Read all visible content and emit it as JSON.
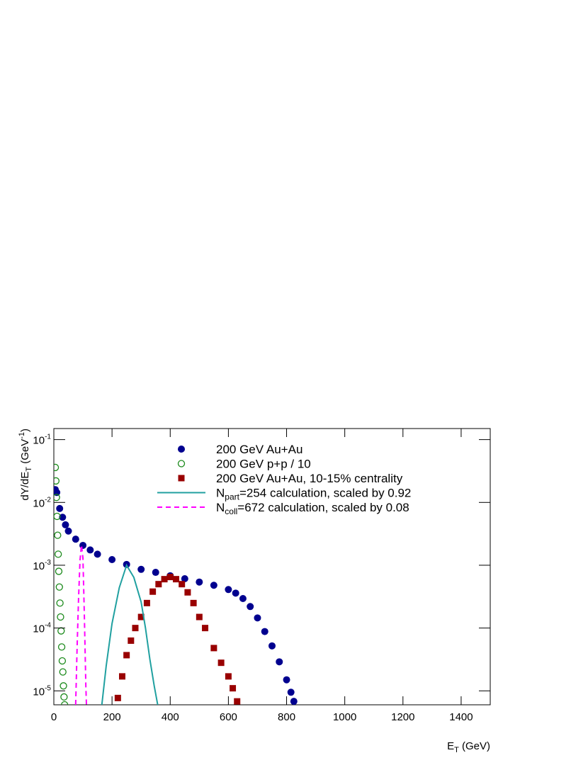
{
  "chart_data": {
    "type": "scatter",
    "xlabel": {
      "text": "E",
      "sub": "T",
      "rest": " (GeV)"
    },
    "ylabel": {
      "text": "dY/dE",
      "sub": "T",
      "mid": " (GeV",
      "sup": "-1",
      "rest": ")"
    },
    "xlim": [
      0,
      1500
    ],
    "ylim": [
      6e-06,
      0.15
    ],
    "log_y": true,
    "xticks": [
      0,
      200,
      400,
      600,
      800,
      1000,
      1200,
      1400
    ],
    "yticks": [
      {
        "value": 1e-05,
        "label": "10",
        "exponent": "-5"
      },
      {
        "value": 0.0001,
        "label": "10",
        "exponent": "-4"
      },
      {
        "value": 0.001,
        "label": "10",
        "exponent": "-3"
      },
      {
        "value": 0.01,
        "label": "10",
        "exponent": "-2"
      },
      {
        "value": 0.1,
        "label": "10",
        "exponent": "-1"
      }
    ],
    "series": [
      {
        "name": "200 GeV Au+Au",
        "color": "#00008f",
        "kind": "marker",
        "marker": "circle-filled",
        "x": [
          5,
          10,
          20,
          30,
          40,
          50,
          75,
          100,
          125,
          150,
          200,
          250,
          300,
          350,
          400,
          450,
          500,
          550,
          600,
          625,
          650,
          675,
          700,
          725,
          750,
          775,
          800,
          815,
          825
        ],
        "values": [
          0.016,
          0.0144,
          0.008,
          0.0058,
          0.0044,
          0.0035,
          0.0026,
          0.00207,
          0.00175,
          0.0015,
          0.00123,
          0.00103,
          0.00086,
          0.00077,
          0.00068,
          0.00061,
          0.00054,
          0.00048,
          0.00041,
          0.00036,
          0.000295,
          0.00022,
          0.000145,
          8.8e-05,
          5.2e-05,
          2.9e-05,
          1.5e-05,
          9.5e-06,
          6.8e-06
        ]
      },
      {
        "name": "200 GeV p+p / 10",
        "color": "#1b8a1b",
        "kind": "marker",
        "marker": "circle-open",
        "x": [
          5,
          7,
          9,
          11,
          13,
          15,
          17,
          19,
          21,
          23,
          25,
          27,
          29,
          31,
          33,
          35,
          37
        ],
        "values": [
          0.036,
          0.022,
          0.012,
          0.006,
          0.003,
          0.0015,
          0.0008,
          0.00045,
          0.00025,
          0.00015,
          9e-05,
          5e-05,
          3e-05,
          2e-05,
          1.2e-05,
          8e-06,
          6e-06
        ]
      },
      {
        "name": "200 GeV Au+Au, 10-15% centrality",
        "color": "#990000",
        "kind": "marker",
        "marker": "square",
        "x": [
          220,
          235,
          250,
          265,
          280,
          300,
          320,
          340,
          360,
          380,
          400,
          420,
          440,
          460,
          480,
          500,
          520,
          550,
          575,
          600,
          615,
          630
        ],
        "values": [
          7.7e-06,
          1.7e-05,
          3.7e-05,
          6.3e-05,
          0.0001,
          0.00015,
          0.00025,
          0.00038,
          0.0005,
          0.0006,
          0.00065,
          0.0006,
          0.0005,
          0.00037,
          0.00025,
          0.00015,
          0.0001,
          4.8e-05,
          2.8e-05,
          1.7e-05,
          1.1e-05,
          6.8e-06
        ]
      },
      {
        "name": "N",
        "name_sub": "part",
        "name_rest": "=254 calculation, scaled by 0.92",
        "color": "#20a0a0",
        "kind": "line",
        "dash": false,
        "x": [
          165,
          180,
          200,
          225,
          250,
          275,
          300,
          315,
          330,
          345,
          357
        ],
        "values": [
          6e-06,
          2.5e-05,
          0.000118,
          0.00044,
          0.001,
          0.00064,
          0.00026,
          0.0001,
          3.2e-05,
          1.2e-05,
          6e-06
        ]
      },
      {
        "name": "N",
        "name_sub": "coll",
        "name_rest": "=672 calculation, scaled by 0.08",
        "color": "#ff00ff",
        "kind": "line",
        "dash": true,
        "x": [
          75,
          80,
          85,
          90,
          95,
          100,
          105,
          110,
          112
        ],
        "values": [
          6e-06,
          5e-05,
          0.0003,
          0.0012,
          0.0021,
          0.0013,
          0.00015,
          1.2e-05,
          6e-06
        ]
      }
    ]
  }
}
